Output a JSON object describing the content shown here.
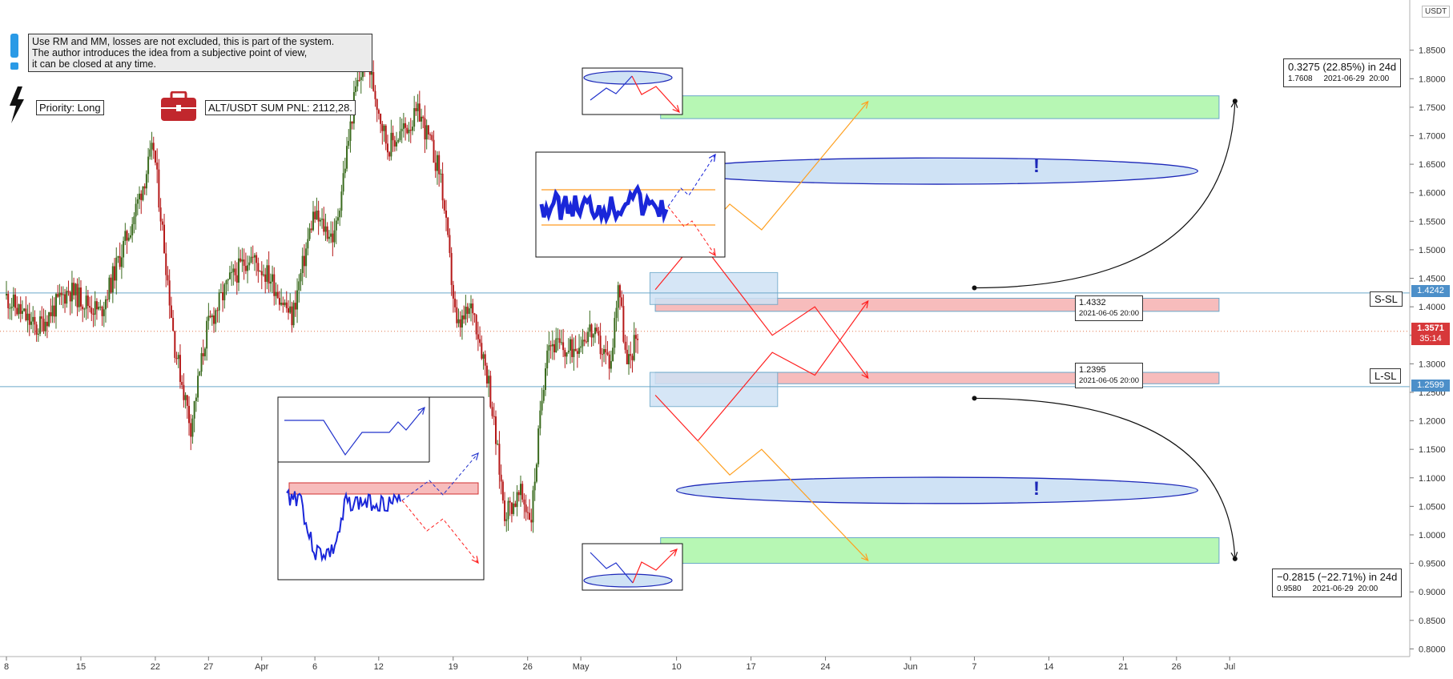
{
  "notes": {
    "disclaimer": "Use RM and MM, losses are not excluded, this is part of the system.\nThe author introduces the idea from a subjective point of view,\nit can be closed at any time.",
    "priority": "Priority: Long",
    "pnl": "ALT/USDT SUM PNL: 2112,28."
  },
  "currency_label": "USDT",
  "price_tags": {
    "ssl_level": "1.4242",
    "current_price": "1.3571",
    "countdown": "35:14",
    "lsl_level": "1.2599",
    "ssl_label": "S-SL",
    "lsl_label": "L-SL"
  },
  "measure_up": {
    "line1": "0.3275 (22.85%) in 24d",
    "line2": "1.7608     2021-06-29  20:00"
  },
  "measure_down": {
    "line1": "−0.2815 (−22.71%) in 24d",
    "line2": "0.9580     2021-06-29  20:00"
  },
  "anchor_up": {
    "price": "1.4332",
    "date": "2021-06-05 20:00"
  },
  "anchor_down": {
    "price": "1.2395",
    "date": "2021-06-05 20:00"
  },
  "exclamation": "!",
  "colors": {
    "up_candle": "#3a6b1e",
    "down_candle": "#b51818",
    "bull_zone": "#b7f7b4",
    "sl_zone": "#f7bcbc",
    "entry_zone": "#cfe2f5",
    "ellipse_fill": "#cfe2f5",
    "ellipse_stroke": "#1c27b8",
    "path_red": "#ff2020",
    "path_orange": "#ffa020",
    "hline": "#6aa7c9",
    "price_line": "#e0754a",
    "tag_blue": "#4c8fc9",
    "tag_red": "#d7383a"
  },
  "chart_data": {
    "type": "candlestick",
    "title": "",
    "ylim": [
      0.78,
      1.89
    ],
    "yticks": [
      "1.8500",
      "1.8000",
      "1.7500",
      "1.7000",
      "1.6500",
      "1.6000",
      "1.5500",
      "1.5000",
      "1.4500",
      "1.4000",
      "1.3500",
      "1.3000",
      "1.2500",
      "1.2000",
      "1.1500",
      "1.1000",
      "1.0500",
      "1.0000",
      "0.9500",
      "0.9000",
      "0.8500",
      "0.8000"
    ],
    "xticks": [
      {
        "label": "8",
        "day": 0
      },
      {
        "label": "15",
        "day": 7
      },
      {
        "label": "22",
        "day": 14
      },
      {
        "label": "27",
        "day": 19
      },
      {
        "label": "Apr",
        "day": 24
      },
      {
        "label": "6",
        "day": 29
      },
      {
        "label": "12",
        "day": 35
      },
      {
        "label": "19",
        "day": 42
      },
      {
        "label": "26",
        "day": 49
      },
      {
        "label": "May",
        "day": 54
      },
      {
        "label": "10",
        "day": 63
      },
      {
        "label": "17",
        "day": 70
      },
      {
        "label": "24",
        "day": 77
      },
      {
        "label": "Jun",
        "day": 85
      },
      {
        "label": "7",
        "day": 91
      },
      {
        "label": "14",
        "day": 98
      },
      {
        "label": "21",
        "day": 105
      },
      {
        "label": "26",
        "day": 110
      },
      {
        "label": "Jul",
        "day": 115
      }
    ],
    "candles": {
      "start_day": 0,
      "end_day": 59.5,
      "step_days": 0.1667,
      "path": [
        {
          "day": 0,
          "price": 1.42
        },
        {
          "day": 3,
          "price": 1.36
        },
        {
          "day": 6,
          "price": 1.43
        },
        {
          "day": 9,
          "price": 1.39
        },
        {
          "day": 12,
          "price": 1.55
        },
        {
          "day": 14,
          "price": 1.68
        },
        {
          "day": 16,
          "price": 1.33
        },
        {
          "day": 17.5,
          "price": 1.19
        },
        {
          "day": 19,
          "price": 1.36
        },
        {
          "day": 21,
          "price": 1.44
        },
        {
          "day": 23,
          "price": 1.49
        },
        {
          "day": 25,
          "price": 1.45
        },
        {
          "day": 27,
          "price": 1.38
        },
        {
          "day": 29,
          "price": 1.56
        },
        {
          "day": 31,
          "price": 1.52
        },
        {
          "day": 33,
          "price": 1.78
        },
        {
          "day": 34,
          "price": 1.84
        },
        {
          "day": 36,
          "price": 1.68
        },
        {
          "day": 39,
          "price": 1.74
        },
        {
          "day": 41,
          "price": 1.63
        },
        {
          "day": 42.5,
          "price": 1.36
        },
        {
          "day": 44,
          "price": 1.4
        },
        {
          "day": 45.5,
          "price": 1.27
        },
        {
          "day": 47,
          "price": 1.04
        },
        {
          "day": 48.5,
          "price": 1.07
        },
        {
          "day": 49.5,
          "price": 1.03
        },
        {
          "day": 51,
          "price": 1.34
        },
        {
          "day": 53,
          "price": 1.32
        },
        {
          "day": 55,
          "price": 1.36
        },
        {
          "day": 57,
          "price": 1.3
        },
        {
          "day": 57.7,
          "price": 1.45
        },
        {
          "day": 58.5,
          "price": 1.29
        },
        {
          "day": 59.5,
          "price": 1.357
        }
      ]
    },
    "levels": [
      {
        "name": "S-SL",
        "price": 1.4242
      },
      {
        "name": "L-SL",
        "price": 1.2599
      },
      {
        "name": "current",
        "price": 1.3571
      }
    ],
    "zones": [
      {
        "kind": "target-long",
        "day_start": 61.5,
        "day_end": 114,
        "price_top": 1.73,
        "price_bottom": 1.77
      },
      {
        "kind": "target-short",
        "day_start": 61.5,
        "day_end": 114,
        "price_top": 0.995,
        "price_bottom": 0.95
      },
      {
        "kind": "short-stop",
        "day_start": 61,
        "day_end": 114,
        "price_top": 1.415,
        "price_bottom": 1.392
      },
      {
        "kind": "long-stop",
        "day_start": 61,
        "day_end": 114,
        "price_top": 1.285,
        "price_bottom": 1.265
      },
      {
        "kind": "entry-upper",
        "day_start": 60.5,
        "day_end": 72.5,
        "price_top": 1.46,
        "price_bottom": 1.404
      },
      {
        "kind": "entry-lower",
        "day_start": 60.5,
        "day_end": 72.5,
        "price_top": 1.285,
        "price_bottom": 1.225
      }
    ],
    "ellipses": [
      {
        "day_center": 87.5,
        "price_center": 1.638,
        "day_halfwidth": 24.5,
        "price_halfheight": 0.023
      },
      {
        "day_center": 87.5,
        "price_center": 1.078,
        "day_halfwidth": 24.5,
        "price_halfheight": 0.023
      }
    ],
    "scenario_paths": [
      {
        "color": "path_red",
        "points": [
          [
            61,
            1.43
          ],
          [
            65,
            1.52
          ],
          [
            72,
            1.35
          ],
          [
            76,
            1.4
          ],
          [
            81,
            1.275
          ]
        ]
      },
      {
        "color": "path_orange",
        "points": [
          [
            65,
            1.52
          ],
          [
            68,
            1.58
          ],
          [
            71,
            1.535
          ],
          [
            81,
            1.76
          ]
        ]
      },
      {
        "color": "path_red",
        "points": [
          [
            61,
            1.245
          ],
          [
            65,
            1.165
          ],
          [
            72,
            1.32
          ],
          [
            76,
            1.28
          ],
          [
            81,
            1.41
          ]
        ]
      },
      {
        "color": "path_orange",
        "points": [
          [
            65,
            1.165
          ],
          [
            68,
            1.105
          ],
          [
            71,
            1.15
          ],
          [
            81,
            0.955
          ]
        ]
      }
    ],
    "measures": [
      {
        "from_day": 91,
        "from_price": 1.4332,
        "to_day": 115.5,
        "to_price": 1.7608,
        "change": "0.3275 (22.85%)",
        "bars": "24d"
      },
      {
        "from_day": 91,
        "from_price": 1.2395,
        "to_day": 115.5,
        "to_price": 0.958,
        "change": "−0.2815 (−22.71%)",
        "bars": "24d"
      }
    ]
  }
}
